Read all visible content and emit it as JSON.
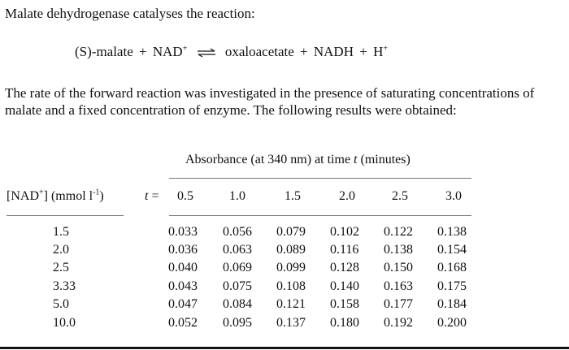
{
  "intro": "Malate dehydrogenase catalyses the reaction:",
  "reaction": {
    "reactant1": "(S)-malate",
    "plus1": "+",
    "reactant2": "NAD",
    "reactant2_sup": "+",
    "product1": "oxaloacetate",
    "plus2": "+",
    "product2": "NADH",
    "plus3": "+",
    "product3": "H",
    "product3_sup": "+"
  },
  "paragraph": "The rate of the forward reaction was investigated in the presence of saturating concentrations of malate and a fixed concentration of enzyme. The following results were obtained:",
  "table": {
    "absorbance_header_pre": "Absorbance (at 340 nm) at time ",
    "absorbance_header_var": "t",
    "absorbance_header_post": " (minutes)",
    "nad_col_pre": "[NAD",
    "nad_col_sup1": "+",
    "nad_col_mid": "] (mmol l",
    "nad_col_sup2": "-1",
    "nad_col_post": ")",
    "t_label": "t",
    "t_eq": "=",
    "times": [
      "0.5",
      "1.0",
      "1.5",
      "2.0",
      "2.5",
      "3.0"
    ],
    "rows": [
      {
        "nad": "1.5",
        "values": [
          "0.033",
          "0.056",
          "0.079",
          "0.102",
          "0.122",
          "0.138"
        ]
      },
      {
        "nad": "2.0",
        "values": [
          "0.036",
          "0.063",
          "0.089",
          "0.116",
          "0.138",
          "0.154"
        ]
      },
      {
        "nad": "2.5",
        "values": [
          "0.040",
          "0.069",
          "0.099",
          "0.128",
          "0.150",
          "0.168"
        ]
      },
      {
        "nad": "3.33",
        "values": [
          "0.043",
          "0.075",
          "0.108",
          "0.140",
          "0.163",
          "0.175"
        ]
      },
      {
        "nad": "5.0",
        "values": [
          "0.047",
          "0.084",
          "0.121",
          "0.158",
          "0.177",
          "0.184"
        ]
      },
      {
        "nad": "10.0",
        "values": [
          "0.052",
          "0.095",
          "0.137",
          "0.180",
          "0.192",
          "0.200"
        ]
      }
    ]
  }
}
